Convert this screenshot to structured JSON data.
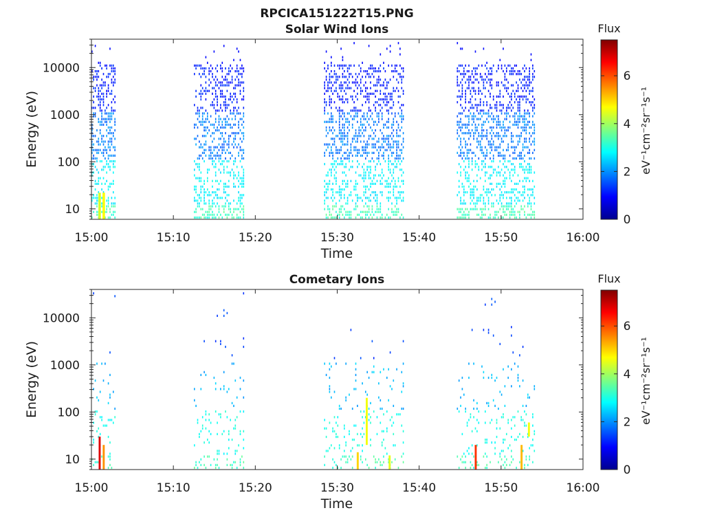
{
  "figure": {
    "title": "RPCICA151222T15.PNG"
  },
  "chart_data": [
    {
      "type": "heatmap",
      "title": "Solar Wind Ions",
      "xlabel": "Time",
      "ylabel": "Energy (eV)",
      "x_tick_labels": [
        "15:00",
        "15:10",
        "15:20",
        "15:30",
        "15:40",
        "15:50",
        "16:00"
      ],
      "x_range_minutes": [
        0,
        60
      ],
      "y_scale": "log",
      "y_tick_values": [
        10,
        100,
        1000,
        10000
      ],
      "y_tick_labels": [
        "10",
        "100",
        "1000",
        "10000"
      ],
      "y_range_eV": [
        6,
        40000
      ],
      "grid": false,
      "colorbar": {
        "title": "Flux",
        "label": "eV⁻¹cm⁻²sr⁻¹s⁻¹",
        "range": [
          0,
          7.5
        ],
        "tick_values": [
          0,
          2,
          4,
          6
        ],
        "tick_labels": [
          "0",
          "2",
          "4",
          "6"
        ],
        "colormap": "jet"
      },
      "data_intervals_minutes": [
        [
          0.0,
          2.9
        ],
        [
          12.5,
          18.6
        ],
        [
          28.4,
          38.1
        ],
        [
          44.6,
          54.2
        ]
      ],
      "typical_flux": {
        "above_1000eV": 1.0,
        "100_to_1000eV": 1.8,
        "10_to_100eV": 2.6,
        "below_10eV": 3.2
      },
      "peak_flux": 4.7
    },
    {
      "type": "heatmap",
      "title": "Cometary Ions",
      "xlabel": "Time",
      "ylabel": "Energy (eV)",
      "x_tick_labels": [
        "15:00",
        "15:10",
        "15:20",
        "15:30",
        "15:40",
        "15:50",
        "16:00"
      ],
      "x_range_minutes": [
        0,
        60
      ],
      "y_scale": "log",
      "y_tick_values": [
        10,
        100,
        1000,
        10000
      ],
      "y_tick_labels": [
        "10",
        "100",
        "1000",
        "10000"
      ],
      "y_range_eV": [
        6,
        40000
      ],
      "grid": false,
      "colorbar": {
        "title": "Flux",
        "label": "eV⁻¹cm⁻²sr⁻¹s⁻¹",
        "range": [
          0,
          7.5
        ],
        "tick_values": [
          0,
          2,
          4,
          6
        ],
        "tick_labels": [
          "0",
          "2",
          "4",
          "6"
        ],
        "colormap": "jet"
      },
      "data_intervals_minutes": [
        [
          0.0,
          2.9
        ],
        [
          12.5,
          18.6
        ],
        [
          28.4,
          38.1
        ],
        [
          44.6,
          54.2
        ]
      ],
      "hot_spots": [
        {
          "t_minutes": 1.0,
          "e_low_eV": 6,
          "e_high_eV": 30,
          "flux": 6.8
        },
        {
          "t_minutes": 1.5,
          "e_low_eV": 6,
          "e_high_eV": 20,
          "flux": 5.5
        },
        {
          "t_minutes": 33.6,
          "e_low_eV": 20,
          "e_high_eV": 200,
          "flux": 4.6
        },
        {
          "t_minutes": 32.5,
          "e_low_eV": 6,
          "e_high_eV": 14,
          "flux": 5.0
        },
        {
          "t_minutes": 36.4,
          "e_low_eV": 6,
          "e_high_eV": 12,
          "flux": 4.5
        },
        {
          "t_minutes": 46.9,
          "e_low_eV": 6,
          "e_high_eV": 20,
          "flux": 6.2
        },
        {
          "t_minutes": 52.5,
          "e_low_eV": 6,
          "e_high_eV": 20,
          "flux": 5.2
        },
        {
          "t_minutes": 53.4,
          "e_low_eV": 30,
          "e_high_eV": 60,
          "flux": 4.6
        }
      ],
      "peak_flux": 7.0
    }
  ]
}
